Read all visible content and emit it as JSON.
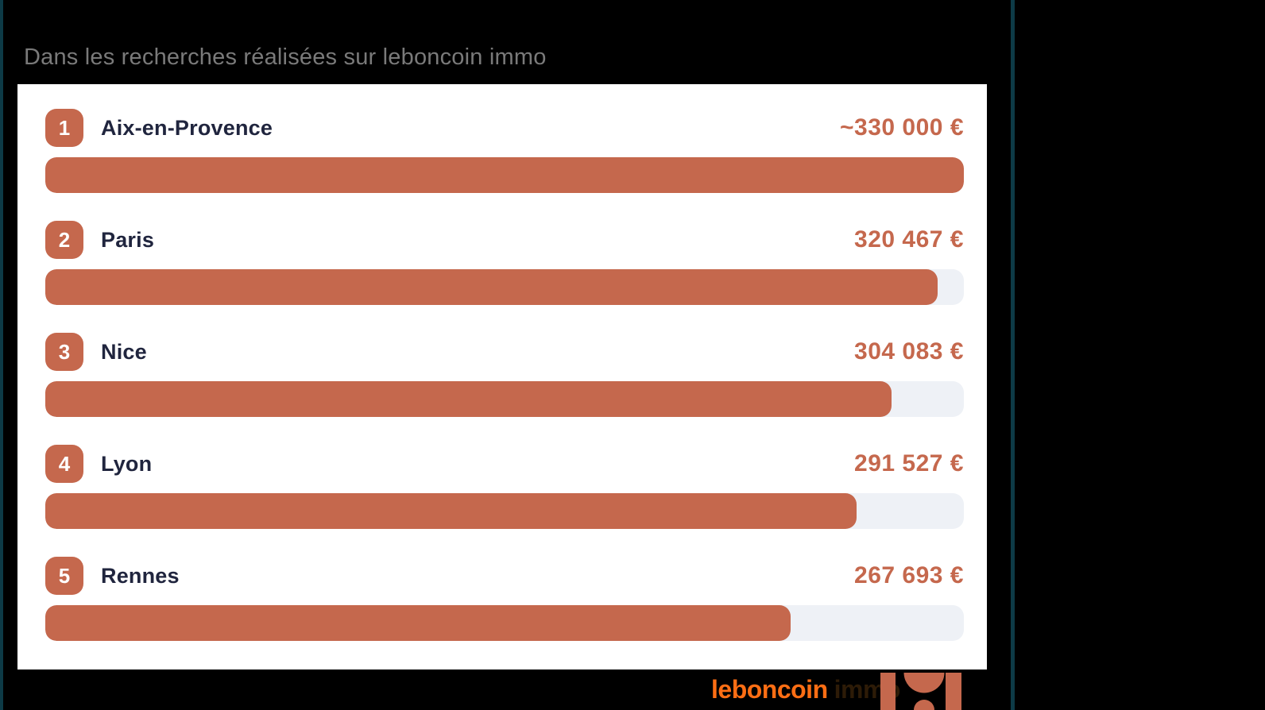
{
  "header": {
    "subtitle": "Dans les recherches réalisées sur leboncoin immo"
  },
  "chart_data": {
    "type": "bar",
    "orientation": "horizontal",
    "title": "Dans les recherches réalisées sur leboncoin immo",
    "categories": [
      "Aix-en-Provence",
      "Paris",
      "Nice",
      "Lyon",
      "Rennes"
    ],
    "ranks": [
      "1",
      "2",
      "3",
      "4",
      "5"
    ],
    "values": [
      330000,
      320467,
      304083,
      291527,
      267693
    ],
    "value_labels": [
      "~330 000 €",
      "320 467 €",
      "304 083 €",
      "291 527 €",
      "267 693 €"
    ],
    "xlim": [
      0,
      330000
    ],
    "unit": "€",
    "grid": false,
    "legend": false,
    "bar_color": "#c5684d",
    "track_color": "#eef1f6"
  },
  "footer": {
    "brand": "leboncoin",
    "brand_suffix": "immo"
  },
  "colors": {
    "background": "#000000",
    "accent_terracotta": "#c5684d",
    "brand_orange": "#ff6e14",
    "divider_teal": "#0d3a46",
    "label_navy": "#20253e",
    "subtitle_gray": "#7a7a7a",
    "track_gray": "#eef1f6"
  }
}
